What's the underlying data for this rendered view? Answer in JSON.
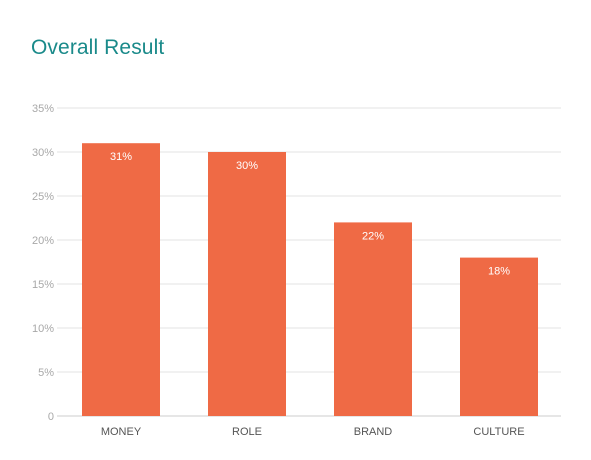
{
  "title": "Overall Result",
  "colors": {
    "title": "#1a8a8a",
    "bar": "#ef6a45",
    "grid": "#e3e3e3",
    "axis": "#cccccc"
  },
  "chart_data": {
    "type": "bar",
    "title": "",
    "xlabel": "",
    "ylabel": "",
    "categories": [
      "MONEY",
      "ROLE",
      "BRAND",
      "CULTURE"
    ],
    "values": [
      31,
      30,
      22,
      18
    ],
    "data_labels": [
      "31%",
      "30%",
      "22%",
      "18%"
    ],
    "ylim": [
      0,
      35
    ],
    "yticks": [
      0,
      5,
      10,
      15,
      20,
      25,
      30,
      35
    ],
    "ytick_labels": [
      "0",
      "5%",
      "10%",
      "15%",
      "20%",
      "25%",
      "30%",
      "35%"
    ],
    "grid": true,
    "legend": "none"
  }
}
